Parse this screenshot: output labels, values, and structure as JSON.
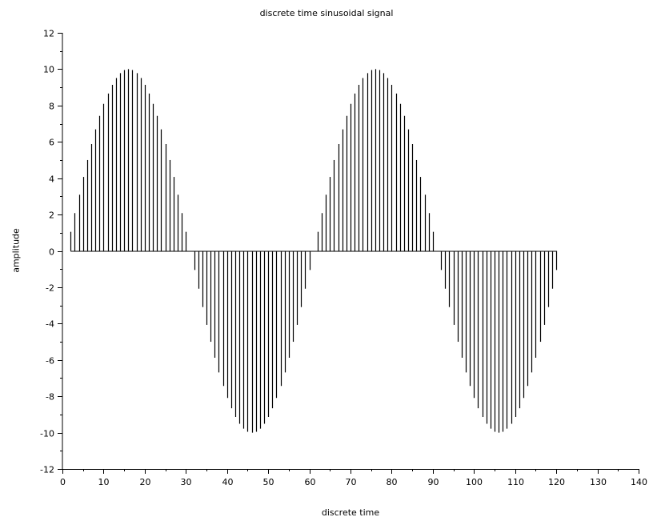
{
  "chart_data": {
    "type": "stem",
    "title": "discrete time sinusoidal signal",
    "xlabel": "discrete time",
    "ylabel": "amplitude",
    "xlim": [
      0,
      140
    ],
    "ylim": [
      -12,
      12
    ],
    "x_ticks": [
      0,
      10,
      20,
      30,
      40,
      50,
      60,
      70,
      80,
      90,
      100,
      110,
      120,
      130,
      140
    ],
    "y_ticks": [
      -12,
      -10,
      -8,
      -6,
      -4,
      -2,
      0,
      2,
      4,
      6,
      8,
      10,
      12
    ],
    "grid": false,
    "legend": "none",
    "color": "#000000",
    "x": [
      2,
      3,
      4,
      5,
      6,
      7,
      8,
      9,
      10,
      11,
      12,
      13,
      14,
      15,
      16,
      17,
      18,
      19,
      20,
      21,
      22,
      23,
      24,
      25,
      26,
      27,
      28,
      29,
      30,
      31,
      32,
      33,
      34,
      35,
      36,
      37,
      38,
      39,
      40,
      41,
      42,
      43,
      44,
      45,
      46,
      47,
      48,
      49,
      50,
      51,
      52,
      53,
      54,
      55,
      56,
      57,
      58,
      59,
      60,
      61,
      62,
      63,
      64,
      65,
      66,
      67,
      68,
      69,
      70,
      71,
      72,
      73,
      74,
      75,
      76,
      77,
      78,
      79,
      80,
      81,
      82,
      83,
      84,
      85,
      86,
      87,
      88,
      89,
      90,
      91,
      92,
      93,
      94,
      95,
      96,
      97,
      98,
      99,
      100,
      101,
      102,
      103,
      104,
      105,
      106,
      107,
      108,
      109,
      110,
      111,
      112,
      113,
      114,
      115,
      116,
      117,
      118,
      119,
      120
    ],
    "values": [
      1.05,
      2.08,
      3.09,
      4.07,
      5.0,
      5.88,
      6.69,
      7.43,
      8.09,
      8.66,
      9.14,
      9.51,
      9.78,
      9.95,
      10.0,
      9.95,
      9.78,
      9.51,
      9.14,
      8.66,
      8.09,
      7.43,
      6.69,
      5.88,
      5.0,
      4.07,
      3.09,
      2.08,
      1.05,
      0.0,
      -1.05,
      -2.08,
      -3.09,
      -4.07,
      -5.0,
      -5.88,
      -6.69,
      -7.43,
      -8.09,
      -8.66,
      -9.14,
      -9.51,
      -9.78,
      -9.95,
      -10.0,
      -9.95,
      -9.78,
      -9.51,
      -9.14,
      -8.66,
      -8.09,
      -7.43,
      -6.69,
      -5.88,
      -5.0,
      -4.07,
      -3.09,
      -2.08,
      -1.05,
      0.0,
      1.05,
      2.08,
      3.09,
      4.07,
      5.0,
      5.88,
      6.69,
      7.43,
      8.09,
      8.66,
      9.14,
      9.51,
      9.78,
      9.95,
      10.0,
      9.95,
      9.78,
      9.51,
      9.14,
      8.66,
      8.09,
      7.43,
      6.69,
      5.88,
      5.0,
      4.07,
      3.09,
      2.08,
      1.05,
      0.0,
      -1.05,
      -2.08,
      -3.09,
      -4.07,
      -5.0,
      -5.88,
      -6.69,
      -7.43,
      -8.09,
      -8.66,
      -9.14,
      -9.51,
      -9.78,
      -9.95,
      -10.0,
      -9.95,
      -9.78,
      -9.51,
      -9.14,
      -8.66,
      -8.09,
      -7.43,
      -6.69,
      -5.88,
      -5.0,
      -4.07,
      -3.09,
      -2.08,
      -1.05
    ]
  }
}
